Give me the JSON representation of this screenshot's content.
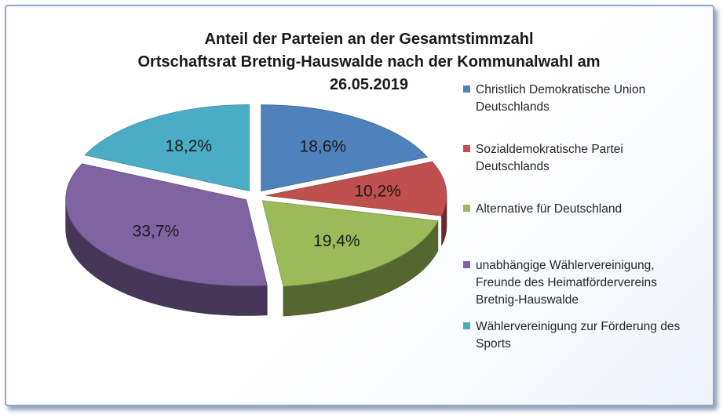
{
  "chart_data": {
    "type": "pie",
    "title_lines": [
      "Anteil der Parteien an der Gesamtstimmzahl",
      "Ortschaftsrat Bretnig-Hauswalde nach der Kommunalwahl am",
      "26.05.2019"
    ],
    "slices": [
      {
        "name": "Christlich Demokratische Union\nDeutschlands",
        "value": 18.6,
        "label": "18,6%",
        "color": "#4f81bd"
      },
      {
        "name": "Sozialdemokratische Partei\nDeutschlands",
        "value": 10.2,
        "label": "10,2%",
        "color": "#c0504d"
      },
      {
        "name": "Alternative für Deutschland",
        "value": 19.4,
        "label": "19,4%",
        "color": "#9bbb59"
      },
      {
        "name": "unabhängige Wählervereinigung,\nFreunde des Heimatfördervereins\nBretnig-Hauswalde",
        "value": 33.7,
        "label": "33,7%",
        "color": "#8064a2"
      },
      {
        "name": "Wählervereinigung zur Förderung des\nSports",
        "value": 18.2,
        "label": "18,2%",
        "color": "#4bacc6"
      }
    ],
    "exploded": true,
    "three_d": true,
    "legend_position": "right"
  }
}
